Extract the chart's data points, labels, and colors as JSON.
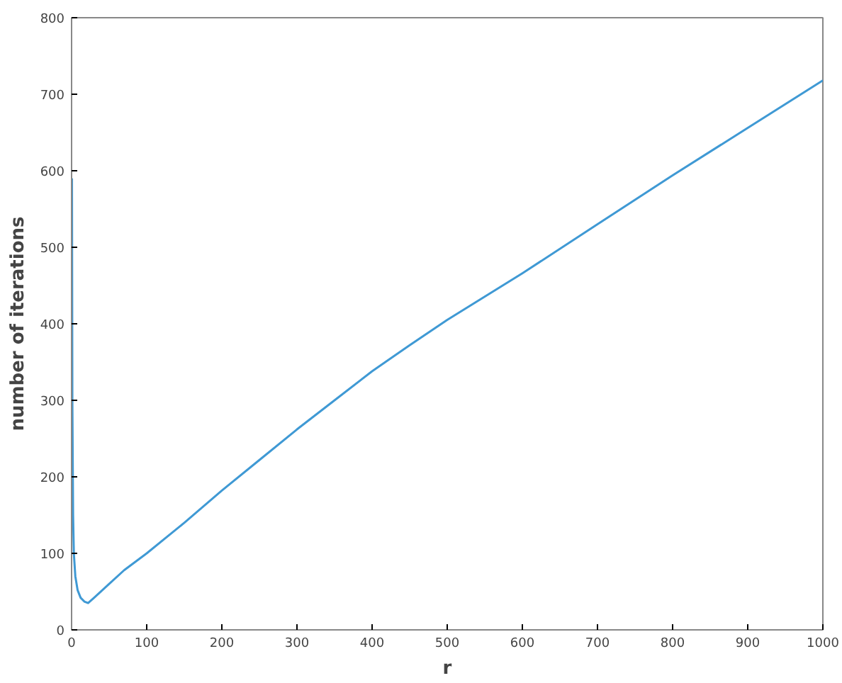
{
  "chart_data": {
    "type": "line",
    "xlabel": "r",
    "ylabel": "number of iterations",
    "x": [
      0.5,
      1,
      2,
      3,
      5,
      8,
      12,
      17,
      22,
      30,
      50,
      70,
      100,
      150,
      200,
      250,
      300,
      350,
      400,
      450,
      500,
      600,
      700,
      800,
      900,
      1000
    ],
    "series": [
      {
        "color": "#3f99d4",
        "values": [
          590,
          300,
          150,
          100,
          70,
          52,
          42,
          37,
          35,
          42,
          60,
          78,
          100,
          140,
          182,
          222,
          262,
          300,
          338,
          372,
          405,
          466,
          530,
          594,
          656,
          718
        ]
      }
    ],
    "xlim": [
      0,
      1000
    ],
    "ylim": [
      0,
      800
    ],
    "xticks": [
      0,
      100,
      200,
      300,
      400,
      500,
      600,
      700,
      800,
      900,
      1000
    ],
    "yticks": [
      0,
      100,
      200,
      300,
      400,
      500,
      600,
      700,
      800
    ],
    "grid": false,
    "marker": "none",
    "line_style": "solid"
  }
}
